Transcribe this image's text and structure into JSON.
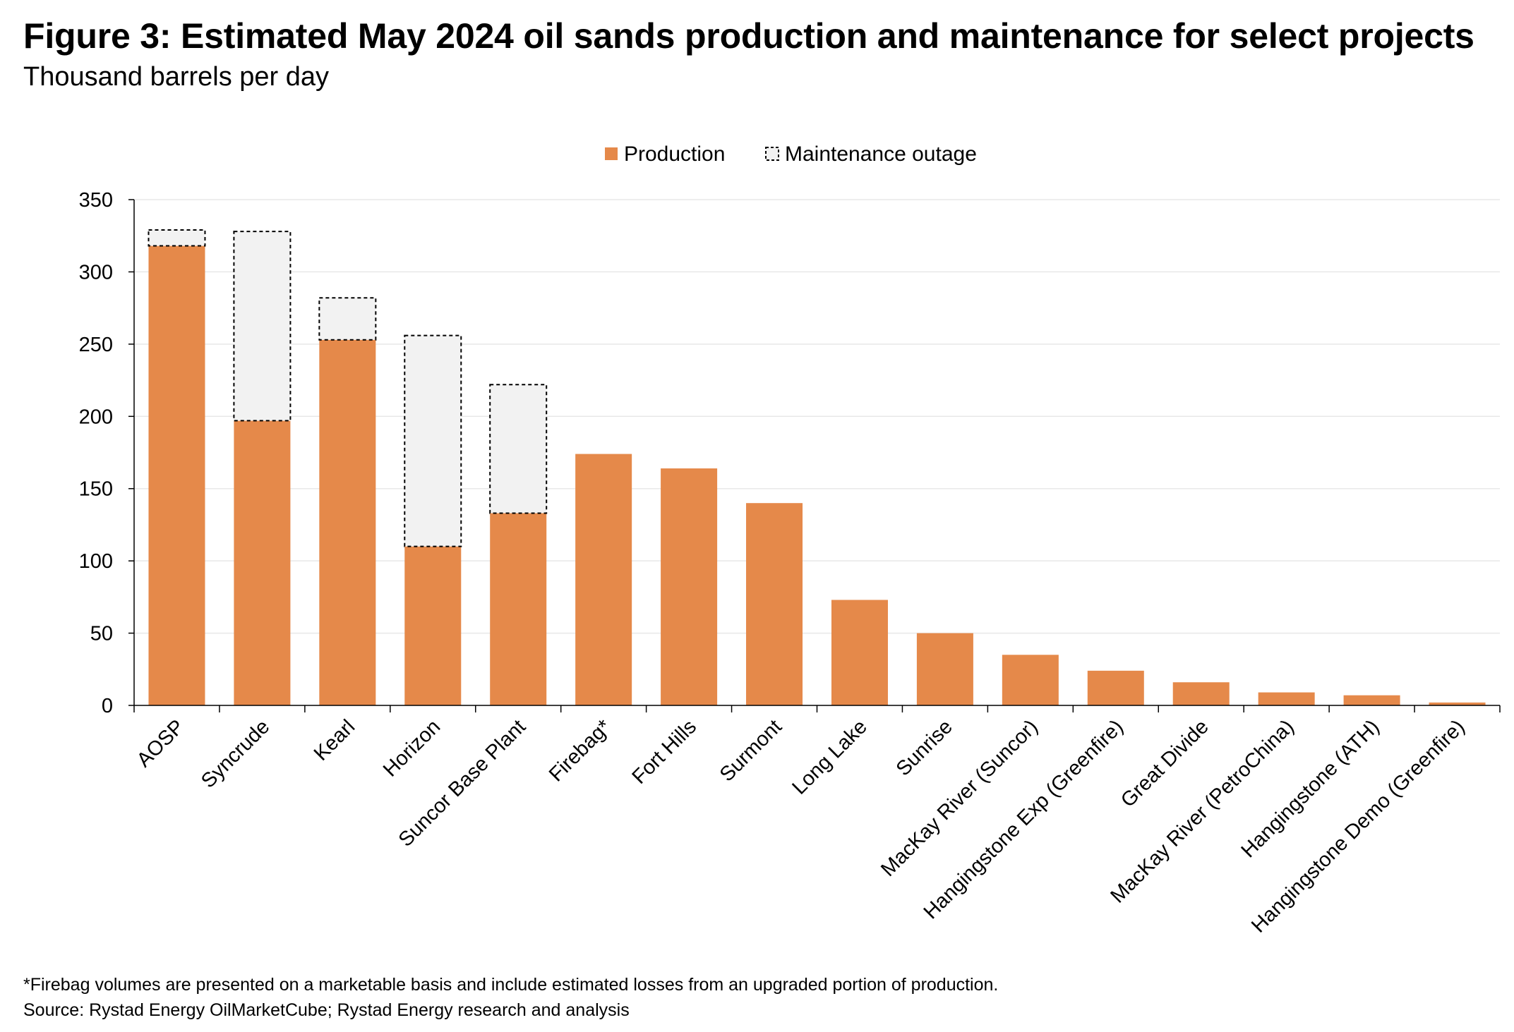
{
  "title": "Figure 3: Estimated May 2024 oil sands production and maintenance for select projects",
  "subtitle": "Thousand barrels per day",
  "footnote": "*Firebag volumes are presented on a marketable basis and include estimated losses from an upgraded portion of production.",
  "source": "Source: Rystad Energy OilMarketCube; Rystad Energy research and analysis",
  "colors": {
    "production": "#E5894A",
    "maintenance_fill": "#F2F2F2",
    "maintenance_border": "#000000",
    "gridline": "#E8E8E8",
    "axis": "#000000"
  },
  "chart_data": {
    "type": "bar",
    "stacked": true,
    "title": "Figure 3: Estimated May 2024 oil sands production and maintenance for select projects",
    "ylabel": "Thousand barrels per day",
    "xlabel": "",
    "ylim": [
      0,
      350
    ],
    "yticks": [
      0,
      50,
      100,
      150,
      200,
      250,
      300,
      350
    ],
    "grid": true,
    "legend_position": "top-center",
    "categories": [
      "AOSP",
      "Syncrude",
      "Kearl",
      "Horizon",
      "Suncor Base Plant",
      "Firebag*",
      "Fort Hills",
      "Surmont",
      "Long Lake",
      "Sunrise",
      "MacKay River (Suncor)",
      "Hangingstone Exp (Greenfire)",
      "Great Divide",
      "MacKay River (PetroChina)",
      "Hangingstone (ATH)",
      "Hangingstone Demo (Greenfire)"
    ],
    "series": [
      {
        "name": "Production",
        "values": [
          318,
          197,
          253,
          110,
          133,
          174,
          164,
          140,
          73,
          50,
          35,
          24,
          16,
          9,
          7,
          2
        ]
      },
      {
        "name": "Maintenance outage",
        "values": [
          11,
          131,
          29,
          146,
          89,
          0,
          0,
          0,
          0,
          0,
          0,
          0,
          0,
          0,
          0,
          0
        ]
      }
    ]
  }
}
